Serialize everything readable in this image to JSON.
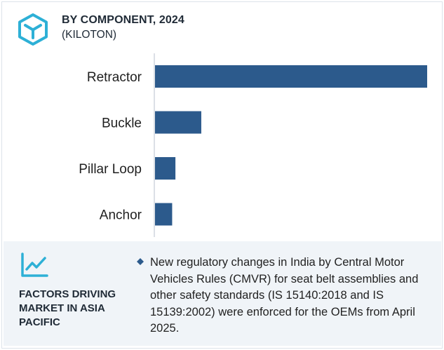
{
  "header": {
    "title": "BY COMPONENT, 2024",
    "subtitle": "(KILOTON)",
    "icon": "cube-outline-icon",
    "accent_color": "#2db0d6"
  },
  "chart_data": {
    "type": "bar",
    "orientation": "horizontal",
    "title": "BY COMPONENT, 2024",
    "subtitle": "(KILOTON)",
    "categories": [
      "Retractor",
      "Buckle",
      "Pillar Loop",
      "Anchor"
    ],
    "values": [
      100,
      17,
      7.5,
      6.3
    ],
    "xlim": [
      0,
      100
    ],
    "grid": false,
    "bar_color": "#2c5a8c"
  },
  "footer": {
    "icon": "trend-line-icon",
    "heading": "FACTORS DRIVING MARKET IN ASIA PACIFIC",
    "bullet_icon": "diamond-bullet-icon",
    "text": "New regulatory changes in India by Central Motor Vehicles Rules (CMVR) for seat belt assemblies and other safety standards (IS 15140:2018 and IS 15139:2002) were enforced for the OEMs from April 2025."
  }
}
